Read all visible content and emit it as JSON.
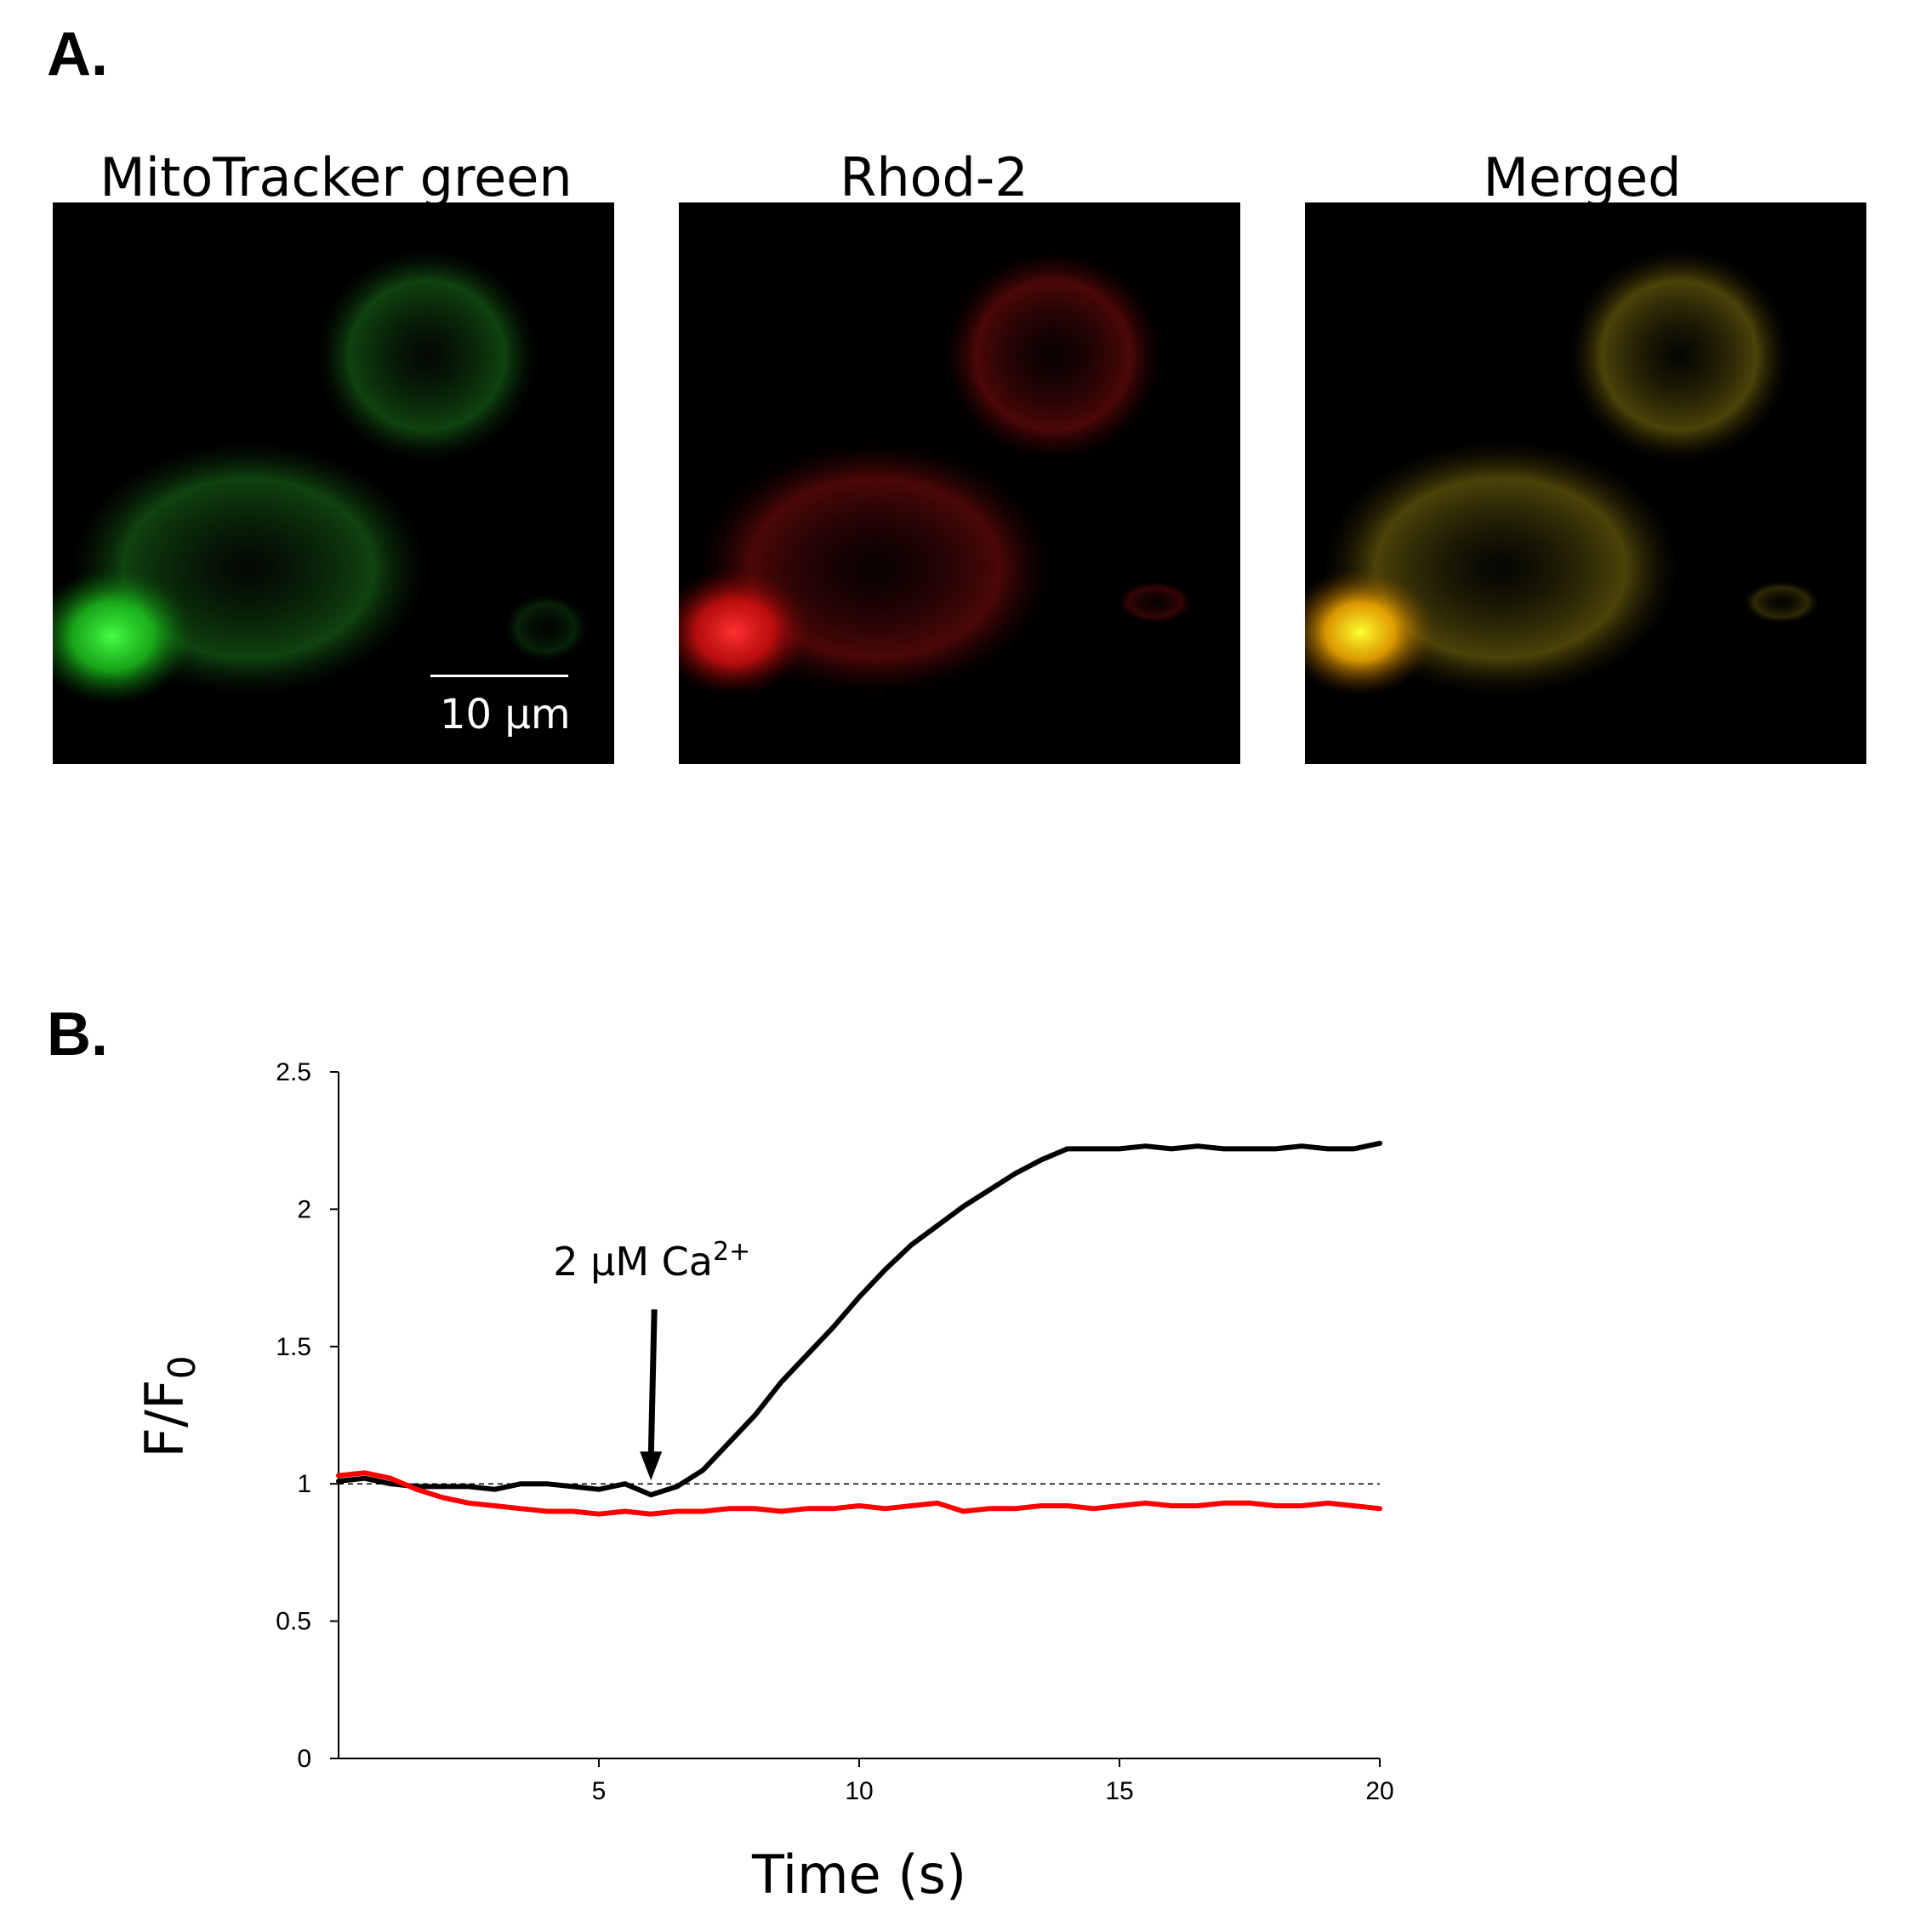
{
  "panel_a": {
    "letter": "A.",
    "images": [
      {
        "title": "MitoTracker green",
        "channel": "green",
        "color": "#21d321"
      },
      {
        "title": "Rhod-2",
        "channel": "red",
        "color": "#ff1a1a"
      },
      {
        "title": "Merged",
        "channel": "merged",
        "color": "#e0c21a"
      }
    ],
    "scale_bar": {
      "label": "10 μm"
    }
  },
  "panel_b": {
    "letter": "B."
  },
  "chart_data": {
    "type": "line",
    "xlabel": "Time (s)",
    "ylabel_main": "F/F",
    "ylabel_sub": "0",
    "xlim": [
      0,
      20
    ],
    "ylim": [
      0,
      2.5
    ],
    "xticks": [
      5,
      10,
      15,
      20
    ],
    "yticks": [
      0,
      0.5,
      1,
      1.5,
      2,
      2.5
    ],
    "reference_line": {
      "y": 1,
      "style": "dashed"
    },
    "annotation": {
      "text_main": "2 μM Ca",
      "text_sup": "2+",
      "arrow_x": 6,
      "arrow_y": 1
    },
    "series": [
      {
        "color": "#000000",
        "points": [
          [
            0,
            1.01
          ],
          [
            0.5,
            1.02
          ],
          [
            1,
            1.0
          ],
          [
            1.5,
            0.99
          ],
          [
            2,
            0.99
          ],
          [
            2.5,
            0.99
          ],
          [
            3,
            0.98
          ],
          [
            3.5,
            1.0
          ],
          [
            4,
            1.0
          ],
          [
            4.5,
            0.99
          ],
          [
            5,
            0.98
          ],
          [
            5.5,
            1.0
          ],
          [
            6,
            0.96
          ],
          [
            6.5,
            0.99
          ],
          [
            7,
            1.05
          ],
          [
            7.5,
            1.15
          ],
          [
            8,
            1.25
          ],
          [
            8.5,
            1.37
          ],
          [
            9,
            1.47
          ],
          [
            9.5,
            1.57
          ],
          [
            10,
            1.68
          ],
          [
            10.5,
            1.78
          ],
          [
            11,
            1.87
          ],
          [
            11.5,
            1.94
          ],
          [
            12,
            2.01
          ],
          [
            12.5,
            2.07
          ],
          [
            13,
            2.13
          ],
          [
            13.5,
            2.18
          ],
          [
            14,
            2.22
          ],
          [
            14.5,
            2.22
          ],
          [
            15,
            2.22
          ],
          [
            15.5,
            2.23
          ],
          [
            16,
            2.22
          ],
          [
            16.5,
            2.23
          ],
          [
            17,
            2.22
          ],
          [
            17.5,
            2.22
          ],
          [
            18,
            2.22
          ],
          [
            18.5,
            2.23
          ],
          [
            19,
            2.22
          ],
          [
            19.5,
            2.22
          ],
          [
            20,
            2.24
          ]
        ]
      },
      {
        "color": "#ff0000",
        "points": [
          [
            0,
            1.03
          ],
          [
            0.5,
            1.04
          ],
          [
            1,
            1.02
          ],
          [
            1.5,
            0.98
          ],
          [
            2,
            0.95
          ],
          [
            2.5,
            0.93
          ],
          [
            3,
            0.92
          ],
          [
            3.5,
            0.91
          ],
          [
            4,
            0.9
          ],
          [
            4.5,
            0.9
          ],
          [
            5,
            0.89
          ],
          [
            5.5,
            0.9
          ],
          [
            6,
            0.89
          ],
          [
            6.5,
            0.9
          ],
          [
            7,
            0.9
          ],
          [
            7.5,
            0.91
          ],
          [
            8,
            0.91
          ],
          [
            8.5,
            0.9
          ],
          [
            9,
            0.91
          ],
          [
            9.5,
            0.91
          ],
          [
            10,
            0.92
          ],
          [
            10.5,
            0.91
          ],
          [
            11,
            0.92
          ],
          [
            11.5,
            0.93
          ],
          [
            12,
            0.9
          ],
          [
            12.5,
            0.91
          ],
          [
            13,
            0.91
          ],
          [
            13.5,
            0.92
          ],
          [
            14,
            0.92
          ],
          [
            14.5,
            0.91
          ],
          [
            15,
            0.92
          ],
          [
            15.5,
            0.93
          ],
          [
            16,
            0.92
          ],
          [
            16.5,
            0.92
          ],
          [
            17,
            0.93
          ],
          [
            17.5,
            0.93
          ],
          [
            18,
            0.92
          ],
          [
            18.5,
            0.92
          ],
          [
            19,
            0.93
          ],
          [
            19.5,
            0.92
          ],
          [
            20,
            0.91
          ]
        ]
      }
    ]
  }
}
